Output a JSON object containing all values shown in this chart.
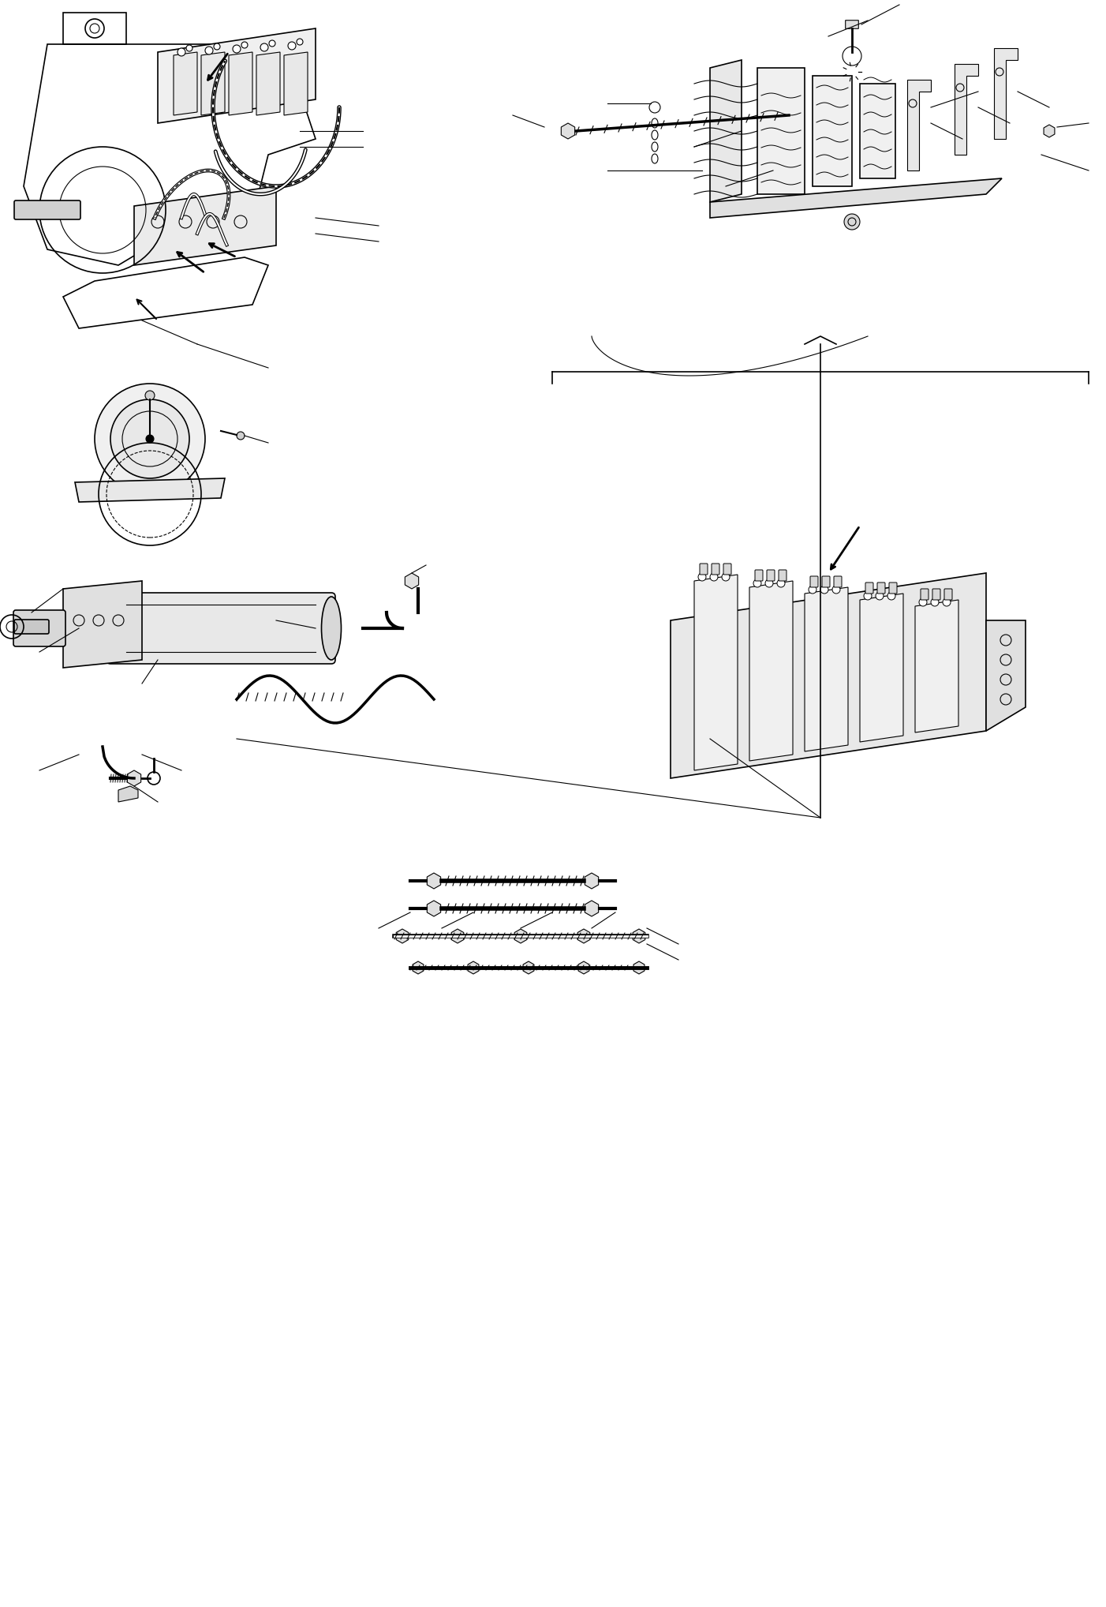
{
  "background_color": "#ffffff",
  "line_color": "#000000",
  "figure_width": 14.02,
  "figure_height": 20.36,
  "dpi": 100
}
